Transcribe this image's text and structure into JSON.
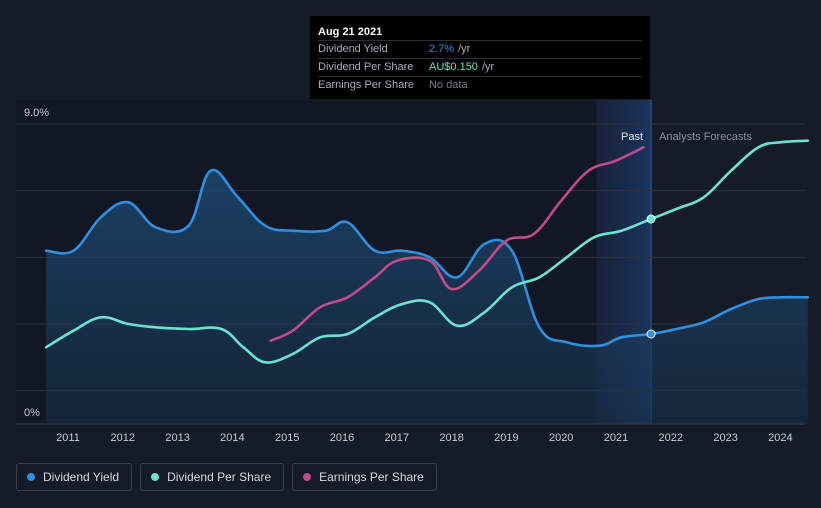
{
  "colors": {
    "dividend_yield": "#2f8fe0",
    "dividend_per_share": "#6ee2d0",
    "earnings_per_share": "#c44a8d",
    "forecast_text": "#8a909a",
    "background": "#151b27"
  },
  "tooltip": {
    "date": "Aug 21 2021",
    "rows": [
      {
        "label": "Dividend Yield",
        "value": "2.7%",
        "unit": "/yr",
        "color": "#2f8fe0"
      },
      {
        "label": "Dividend Per Share",
        "value": "AU$0.150",
        "unit": "/yr",
        "color": "#6ee2d0"
      },
      {
        "label": "Earnings Per Share",
        "value": "No data",
        "unit": "",
        "color": "#7a7f88"
      }
    ]
  },
  "legend": [
    {
      "label": "Dividend Yield",
      "color": "#2f8fe0"
    },
    {
      "label": "Dividend Per Share",
      "color": "#6ee2d0"
    },
    {
      "label": "Earnings Per Share",
      "color": "#c44a8d"
    }
  ],
  "chart_data": {
    "type": "line",
    "title": "",
    "xlabel": "",
    "ylabel": "",
    "ylim": [
      0,
      9
    ],
    "xlim": [
      2010.6,
      2024.5
    ],
    "y_tick_labels": [
      {
        "value": 9,
        "label": "9.0%"
      },
      {
        "value": 0,
        "label": "0%"
      }
    ],
    "x_ticks": [
      2011,
      2012,
      2013,
      2014,
      2015,
      2016,
      2017,
      2018,
      2019,
      2020,
      2021,
      2022,
      2023,
      2024
    ],
    "divider_x": 2021.64,
    "past_start_x": 2020.64,
    "region_labels": {
      "past": "Past",
      "forecast": "Analysts Forecasts"
    },
    "grid": true,
    "legend_position": "bottom-left",
    "series": [
      {
        "name": "Dividend Yield",
        "key": "dividend_yield",
        "filled": true,
        "points": [
          [
            2010.6,
            5.2
          ],
          [
            2011.1,
            5.2
          ],
          [
            2011.6,
            6.2
          ],
          [
            2012.1,
            6.65
          ],
          [
            2012.6,
            5.9
          ],
          [
            2013.2,
            5.95
          ],
          [
            2013.6,
            7.6
          ],
          [
            2014.1,
            6.8
          ],
          [
            2014.6,
            5.95
          ],
          [
            2015.1,
            5.8
          ],
          [
            2015.7,
            5.8
          ],
          [
            2016.1,
            6.05
          ],
          [
            2016.6,
            5.2
          ],
          [
            2017.1,
            5.2
          ],
          [
            2017.6,
            5.0
          ],
          [
            2018.1,
            4.4
          ],
          [
            2018.6,
            5.4
          ],
          [
            2019.1,
            5.2
          ],
          [
            2019.6,
            2.9
          ],
          [
            2020.1,
            2.45
          ],
          [
            2020.7,
            2.35
          ],
          [
            2021.1,
            2.6
          ],
          [
            2021.64,
            2.7
          ],
          [
            2022.1,
            2.85
          ],
          [
            2022.6,
            3.05
          ],
          [
            2023.1,
            3.45
          ],
          [
            2023.6,
            3.75
          ],
          [
            2024.0,
            3.8
          ],
          [
            2024.5,
            3.8
          ]
        ]
      },
      {
        "name": "Dividend Per Share",
        "key": "dividend_per_share",
        "filled": false,
        "points": [
          [
            2010.6,
            2.3
          ],
          [
            2011.1,
            2.8
          ],
          [
            2011.6,
            3.2
          ],
          [
            2012.1,
            3.0
          ],
          [
            2012.6,
            2.9
          ],
          [
            2013.2,
            2.85
          ],
          [
            2013.8,
            2.85
          ],
          [
            2014.2,
            2.3
          ],
          [
            2014.6,
            1.85
          ],
          [
            2015.1,
            2.1
          ],
          [
            2015.6,
            2.6
          ],
          [
            2016.1,
            2.7
          ],
          [
            2016.6,
            3.2
          ],
          [
            2017.1,
            3.6
          ],
          [
            2017.6,
            3.65
          ],
          [
            2018.1,
            2.95
          ],
          [
            2018.6,
            3.35
          ],
          [
            2019.1,
            4.1
          ],
          [
            2019.6,
            4.4
          ],
          [
            2020.1,
            5.0
          ],
          [
            2020.6,
            5.6
          ],
          [
            2021.1,
            5.8
          ],
          [
            2021.64,
            6.15
          ],
          [
            2022.1,
            6.45
          ],
          [
            2022.6,
            6.8
          ],
          [
            2023.1,
            7.6
          ],
          [
            2023.6,
            8.3
          ],
          [
            2024.0,
            8.45
          ],
          [
            2024.5,
            8.5
          ]
        ]
      },
      {
        "name": "Earnings Per Share",
        "key": "earnings_per_share",
        "filled": false,
        "points": [
          [
            2014.7,
            2.5
          ],
          [
            2015.1,
            2.8
          ],
          [
            2015.6,
            3.5
          ],
          [
            2016.1,
            3.8
          ],
          [
            2016.6,
            4.4
          ],
          [
            2017.0,
            4.9
          ],
          [
            2017.6,
            4.9
          ],
          [
            2018.0,
            4.05
          ],
          [
            2018.5,
            4.6
          ],
          [
            2019.0,
            5.5
          ],
          [
            2019.5,
            5.7
          ],
          [
            2020.0,
            6.7
          ],
          [
            2020.5,
            7.6
          ],
          [
            2021.0,
            7.9
          ],
          [
            2021.5,
            8.3
          ]
        ]
      }
    ],
    "markers": [
      {
        "series": "dividend_yield",
        "x": 2021.64,
        "y": 2.7
      },
      {
        "series": "dividend_per_share",
        "x": 2021.64,
        "y": 6.15
      }
    ]
  }
}
